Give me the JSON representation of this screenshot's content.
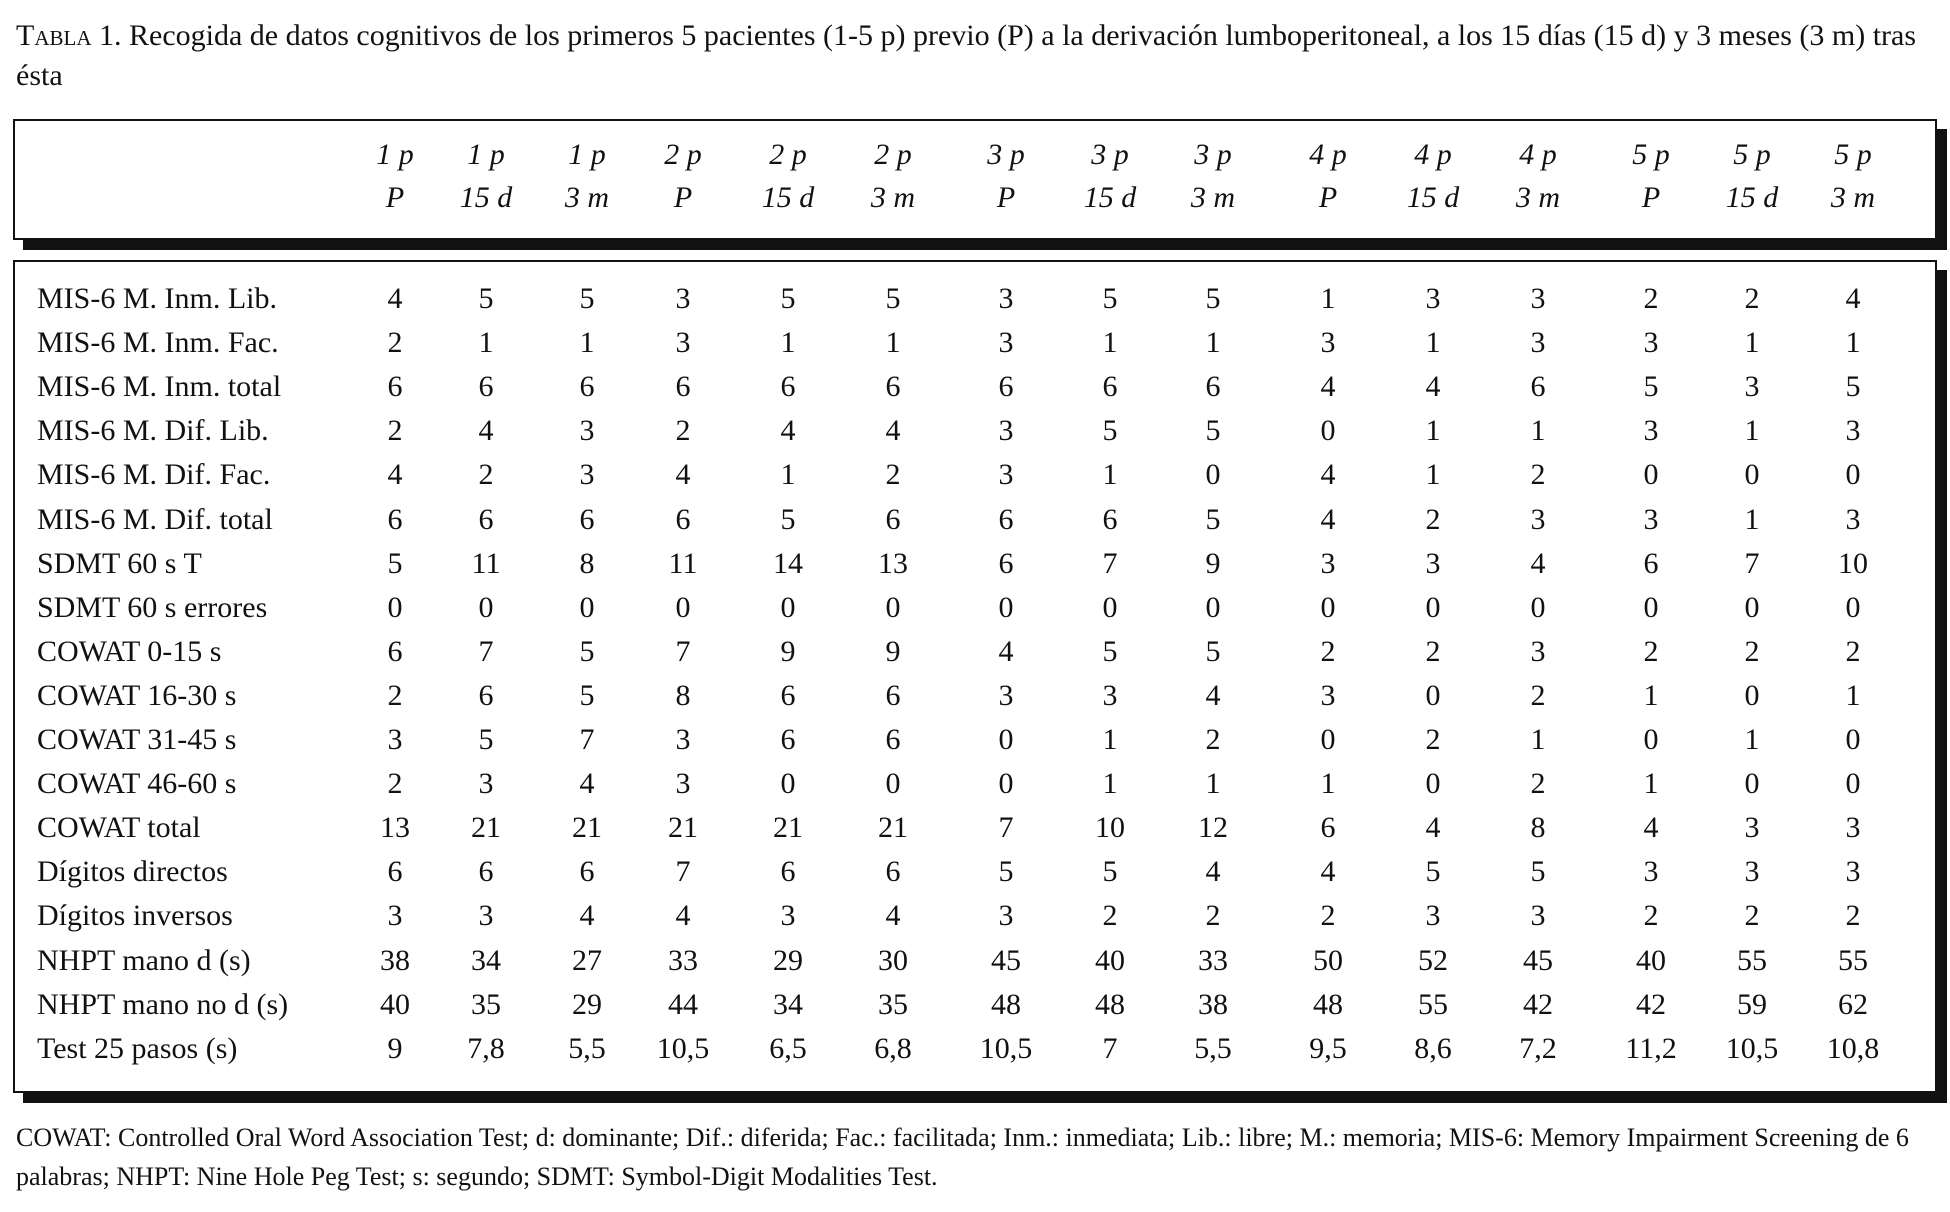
{
  "caption": {
    "label": "Tabla 1.",
    "text": "Recogida de datos cognitivos de los primeros 5 pacientes (1-5 p) previo (P) a la derivación lumboperitoneal, a los 15 días (15 d) y 3 meses (3 m) tras ésta"
  },
  "columns": [
    [
      "1 p",
      "P"
    ],
    [
      "1 p",
      "15 d"
    ],
    [
      "1 p",
      "3 m"
    ],
    [
      "2 p",
      "P"
    ],
    [
      "2 p",
      "15 d"
    ],
    [
      "2 p",
      "3 m"
    ],
    [
      "3 p",
      "P"
    ],
    [
      "3 p",
      "15 d"
    ],
    [
      "3 p",
      "3 m"
    ],
    [
      "4 p",
      "P"
    ],
    [
      "4 p",
      "15 d"
    ],
    [
      "4 p",
      "3 m"
    ],
    [
      "5 p",
      "P"
    ],
    [
      "5 p",
      "15 d"
    ],
    [
      "5 p",
      "3 m"
    ]
  ],
  "rows": [
    {
      "label": "MIS-6 M. Inm. Lib.",
      "values": [
        "4",
        "5",
        "5",
        "3",
        "5",
        "5",
        "3",
        "5",
        "5",
        "1",
        "3",
        "3",
        "2",
        "2",
        "4"
      ]
    },
    {
      "label": "MIS-6 M. Inm. Fac.",
      "values": [
        "2",
        "1",
        "1",
        "3",
        "1",
        "1",
        "3",
        "1",
        "1",
        "3",
        "1",
        "3",
        "3",
        "1",
        "1"
      ]
    },
    {
      "label": "MIS-6 M. Inm. total",
      "values": [
        "6",
        "6",
        "6",
        "6",
        "6",
        "6",
        "6",
        "6",
        "6",
        "4",
        "4",
        "6",
        "5",
        "3",
        "5"
      ]
    },
    {
      "label": "MIS-6 M. Dif. Lib.",
      "values": [
        "2",
        "4",
        "3",
        "2",
        "4",
        "4",
        "3",
        "5",
        "5",
        "0",
        "1",
        "1",
        "3",
        "1",
        "3"
      ]
    },
    {
      "label": "MIS-6 M. Dif. Fac.",
      "values": [
        "4",
        "2",
        "3",
        "4",
        "1",
        "2",
        "3",
        "1",
        "0",
        "4",
        "1",
        "2",
        "0",
        "0",
        "0"
      ]
    },
    {
      "label": "MIS-6 M. Dif. total",
      "values": [
        "6",
        "6",
        "6",
        "6",
        "5",
        "6",
        "6",
        "6",
        "5",
        "4",
        "2",
        "3",
        "3",
        "1",
        "3"
      ]
    },
    {
      "label": "SDMT 60 s T",
      "values": [
        "5",
        "11",
        "8",
        "11",
        "14",
        "13",
        "6",
        "7",
        "9",
        "3",
        "3",
        "4",
        "6",
        "7",
        "10"
      ]
    },
    {
      "label": "SDMT 60 s errores",
      "values": [
        "0",
        "0",
        "0",
        "0",
        "0",
        "0",
        "0",
        "0",
        "0",
        "0",
        "0",
        "0",
        "0",
        "0",
        "0"
      ]
    },
    {
      "label": "COWAT 0-15 s",
      "values": [
        "6",
        "7",
        "5",
        "7",
        "9",
        "9",
        "4",
        "5",
        "5",
        "2",
        "2",
        "3",
        "2",
        "2",
        "2"
      ]
    },
    {
      "label": "COWAT 16-30 s",
      "values": [
        "2",
        "6",
        "5",
        "8",
        "6",
        "6",
        "3",
        "3",
        "4",
        "3",
        "0",
        "2",
        "1",
        "0",
        "1"
      ]
    },
    {
      "label": "COWAT 31-45 s",
      "values": [
        "3",
        "5",
        "7",
        "3",
        "6",
        "6",
        "0",
        "1",
        "2",
        "0",
        "2",
        "1",
        "0",
        "1",
        "0"
      ]
    },
    {
      "label": "COWAT 46-60 s",
      "values": [
        "2",
        "3",
        "4",
        "3",
        "0",
        "0",
        "0",
        "1",
        "1",
        "1",
        "0",
        "2",
        "1",
        "0",
        "0"
      ]
    },
    {
      "label": "COWAT total",
      "values": [
        "13",
        "21",
        "21",
        "21",
        "21",
        "21",
        "7",
        "10",
        "12",
        "6",
        "4",
        "8",
        "4",
        "3",
        "3"
      ]
    },
    {
      "label": "Dígitos directos",
      "values": [
        "6",
        "6",
        "6",
        "7",
        "6",
        "6",
        "5",
        "5",
        "4",
        "4",
        "5",
        "5",
        "3",
        "3",
        "3"
      ]
    },
    {
      "label": "Dígitos inversos",
      "values": [
        "3",
        "3",
        "4",
        "4",
        "3",
        "4",
        "3",
        "2",
        "2",
        "2",
        "3",
        "3",
        "2",
        "2",
        "2"
      ]
    },
    {
      "label": "NHPT mano d (s)",
      "values": [
        "38",
        "34",
        "27",
        "33",
        "29",
        "30",
        "45",
        "40",
        "33",
        "50",
        "52",
        "45",
        "40",
        "55",
        "55"
      ]
    },
    {
      "label": "NHPT mano no d (s)",
      "values": [
        "40",
        "35",
        "29",
        "44",
        "34",
        "35",
        "48",
        "48",
        "38",
        "48",
        "55",
        "42",
        "42",
        "59",
        "62"
      ]
    },
    {
      "label": "Test 25 pasos (s)",
      "values": [
        "9",
        "7,8",
        "5,5",
        "10,5",
        "6,5",
        "6,8",
        "10,5",
        "7",
        "5,5",
        "9,5",
        "8,6",
        "7,2",
        "11,2",
        "10,5",
        "10,8"
      ]
    }
  ],
  "footnote": "COWAT: Controlled Oral Word Association Test; d: dominante; Dif.: diferida; Fac.: facilitada; Inm.: inmediata; Lib.: libre; M.: memoria; MIS-6: Memory Impairment Screening de 6 palabras; NHPT: Nine Hole Peg Test; s: segundo; SDMT: Symbol-Digit Modalities Test."
}
